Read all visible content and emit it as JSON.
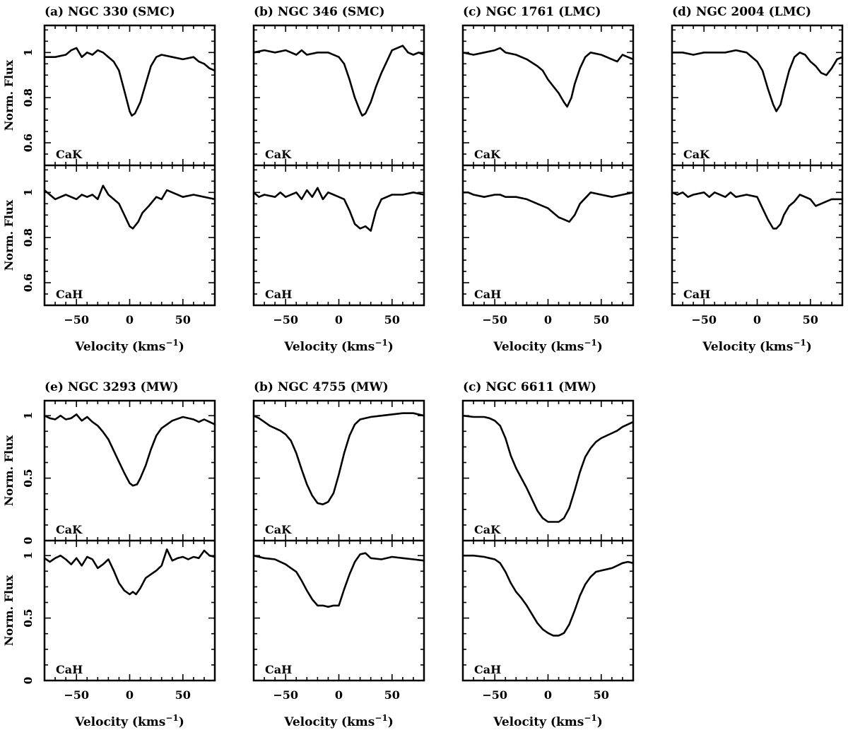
{
  "figure": {
    "xlabel": "Velocity (kms",
    "xlabel_sup": "−1",
    "xlabel_close": ")",
    "ylabel": "Norm. Flux"
  },
  "chart_data": [
    {
      "type": "line",
      "title": "(a) NGC 330 (SMC)",
      "xlim": [
        -80,
        80
      ],
      "ylim": [
        0.5,
        1.12
      ],
      "yticks": [
        0.6,
        0.8,
        1
      ],
      "ytick_labels": [
        "0.6",
        "0.8",
        "1"
      ],
      "xticks": [
        -50,
        0,
        50
      ],
      "xtick_labels": [
        "−50",
        "0",
        "50"
      ],
      "panels": [
        {
          "label": "CaK",
          "x": [
            -80,
            -70,
            -60,
            -55,
            -50,
            -45,
            -40,
            -35,
            -30,
            -25,
            -20,
            -15,
            -10,
            -5,
            0,
            2,
            5,
            10,
            15,
            20,
            25,
            30,
            40,
            50,
            60,
            65,
            70,
            75,
            80
          ],
          "y": [
            0.98,
            0.98,
            0.99,
            1.01,
            1.02,
            0.98,
            1.0,
            0.99,
            1.01,
            1.0,
            0.98,
            0.96,
            0.92,
            0.83,
            0.74,
            0.72,
            0.73,
            0.78,
            0.86,
            0.94,
            0.98,
            0.99,
            0.98,
            0.97,
            0.98,
            0.96,
            0.95,
            0.93,
            0.92
          ]
        },
        {
          "label": "CaH",
          "x": [
            -80,
            -75,
            -70,
            -60,
            -50,
            -45,
            -40,
            -35,
            -30,
            -25,
            -20,
            -15,
            -10,
            -5,
            0,
            3,
            8,
            12,
            18,
            25,
            30,
            35,
            40,
            50,
            60,
            70,
            80
          ],
          "y": [
            1.01,
            0.99,
            0.97,
            0.99,
            0.97,
            0.99,
            0.98,
            0.99,
            0.97,
            1.03,
            0.99,
            0.97,
            0.95,
            0.9,
            0.85,
            0.84,
            0.87,
            0.91,
            0.94,
            0.98,
            0.97,
            1.01,
            1.0,
            0.98,
            0.99,
            0.98,
            0.97
          ]
        }
      ]
    },
    {
      "type": "line",
      "title": "(b) NGC 346 (SMC)",
      "xlim": [
        -80,
        80
      ],
      "ylim": [
        0.5,
        1.12
      ],
      "yticks": [
        0.6,
        0.8,
        1
      ],
      "ytick_labels": [
        "0.6",
        "0.8",
        "1"
      ],
      "xticks": [
        -50,
        0,
        50
      ],
      "xtick_labels": [
        "−50",
        "0",
        "50"
      ],
      "panels": [
        {
          "label": "CaK",
          "x": [
            -80,
            -70,
            -60,
            -50,
            -40,
            -35,
            -30,
            -20,
            -10,
            0,
            5,
            10,
            15,
            20,
            22,
            25,
            30,
            35,
            40,
            45,
            50,
            55,
            60,
            65,
            70,
            75,
            80
          ],
          "y": [
            1.0,
            1.01,
            1.0,
            1.01,
            0.99,
            1.01,
            0.99,
            1.0,
            1.0,
            0.98,
            0.95,
            0.88,
            0.8,
            0.74,
            0.72,
            0.73,
            0.78,
            0.85,
            0.91,
            0.96,
            1.01,
            1.02,
            1.03,
            1.0,
            0.99,
            1.0,
            0.99
          ]
        },
        {
          "label": "CaH",
          "x": [
            -80,
            -75,
            -70,
            -60,
            -55,
            -50,
            -40,
            -35,
            -30,
            -25,
            -20,
            -15,
            -10,
            -5,
            0,
            5,
            10,
            15,
            20,
            25,
            30,
            35,
            40,
            50,
            60,
            70,
            80
          ],
          "y": [
            1.0,
            0.98,
            0.99,
            0.98,
            1.0,
            0.98,
            1.0,
            0.97,
            1.01,
            0.98,
            1.02,
            0.97,
            1.0,
            0.99,
            0.98,
            0.97,
            0.92,
            0.86,
            0.84,
            0.85,
            0.83,
            0.92,
            0.97,
            0.99,
            0.99,
            1.0,
            0.99
          ]
        }
      ]
    },
    {
      "type": "line",
      "title": "(c) NGC 1761 (LMC)",
      "xlim": [
        -80,
        80
      ],
      "ylim": [
        0.5,
        1.12
      ],
      "yticks": [
        0.6,
        0.8,
        1
      ],
      "ytick_labels": [
        "0.6",
        "0.8",
        "1"
      ],
      "xticks": [
        -50,
        0,
        50
      ],
      "xtick_labels": [
        "−50",
        "0",
        "50"
      ],
      "panels": [
        {
          "label": "CaK",
          "x": [
            -80,
            -70,
            -60,
            -50,
            -45,
            -40,
            -30,
            -20,
            -10,
            -5,
            0,
            5,
            10,
            15,
            18,
            22,
            25,
            30,
            35,
            40,
            50,
            55,
            60,
            65,
            70,
            80
          ],
          "y": [
            1.0,
            0.99,
            1.0,
            1.01,
            1.02,
            1.0,
            0.99,
            0.97,
            0.94,
            0.92,
            0.88,
            0.85,
            0.82,
            0.78,
            0.76,
            0.8,
            0.86,
            0.93,
            0.98,
            1.0,
            0.99,
            0.98,
            0.97,
            0.96,
            0.99,
            0.97
          ]
        },
        {
          "label": "CaH",
          "x": [
            -80,
            -75,
            -70,
            -60,
            -50,
            -45,
            -40,
            -30,
            -20,
            -10,
            0,
            5,
            10,
            15,
            20,
            25,
            30,
            40,
            50,
            60,
            70,
            80
          ],
          "y": [
            1.0,
            1.0,
            0.99,
            0.98,
            0.99,
            0.99,
            0.98,
            0.98,
            0.97,
            0.95,
            0.93,
            0.91,
            0.89,
            0.88,
            0.87,
            0.9,
            0.95,
            1.0,
            0.99,
            0.98,
            0.99,
            1.0
          ]
        }
      ]
    },
    {
      "type": "line",
      "title": "(d) NGC 2004 (LMC)",
      "xlim": [
        -80,
        80
      ],
      "ylim": [
        0.5,
        1.12
      ],
      "yticks": [
        0.6,
        0.8,
        1
      ],
      "ytick_labels": [
        "0.6",
        "0.8",
        "1"
      ],
      "xticks": [
        -50,
        0,
        50
      ],
      "xtick_labels": [
        "−50",
        "0",
        "50"
      ],
      "panels": [
        {
          "label": "CaK",
          "x": [
            -80,
            -70,
            -60,
            -50,
            -40,
            -30,
            -20,
            -10,
            -5,
            0,
            5,
            10,
            15,
            18,
            22,
            25,
            30,
            35,
            40,
            45,
            50,
            55,
            60,
            65,
            70,
            75,
            80
          ],
          "y": [
            1.0,
            1.0,
            0.99,
            1.0,
            1.0,
            1.0,
            1.01,
            1.0,
            0.98,
            0.96,
            0.92,
            0.84,
            0.77,
            0.74,
            0.77,
            0.83,
            0.92,
            0.98,
            1.0,
            0.99,
            0.96,
            0.94,
            0.91,
            0.9,
            0.93,
            0.97,
            0.98
          ]
        },
        {
          "label": "CaH",
          "x": [
            -80,
            -75,
            -70,
            -65,
            -60,
            -50,
            -45,
            -40,
            -30,
            -25,
            -20,
            -10,
            0,
            5,
            10,
            15,
            18,
            22,
            25,
            30,
            35,
            40,
            45,
            50,
            55,
            60,
            65,
            70,
            80
          ],
          "y": [
            1.0,
            0.99,
            1.0,
            0.98,
            0.99,
            1.0,
            0.98,
            1.0,
            0.98,
            1.0,
            0.98,
            0.99,
            0.98,
            0.93,
            0.88,
            0.84,
            0.84,
            0.86,
            0.9,
            0.94,
            0.96,
            0.99,
            0.98,
            0.97,
            0.94,
            0.95,
            0.96,
            0.97,
            0.97
          ]
        }
      ]
    },
    {
      "type": "line",
      "title": "(e) NGC 3293 (MW)",
      "xlim": [
        -80,
        80
      ],
      "ylim": [
        0,
        1.12
      ],
      "yticks": [
        0,
        0.5,
        1
      ],
      "ytick_labels": [
        "0",
        "0.5",
        "1"
      ],
      "xticks": [
        -50,
        0,
        50
      ],
      "xtick_labels": [
        "−50",
        "0",
        "50"
      ],
      "panels": [
        {
          "label": "CaK",
          "x": [
            -80,
            -75,
            -70,
            -65,
            -60,
            -55,
            -50,
            -45,
            -40,
            -35,
            -30,
            -25,
            -20,
            -15,
            -10,
            -5,
            0,
            3,
            7,
            10,
            15,
            20,
            25,
            30,
            40,
            50,
            60,
            65,
            70,
            75,
            80
          ],
          "y": [
            1.0,
            0.98,
            0.97,
            1.0,
            0.97,
            0.98,
            1.01,
            0.96,
            0.99,
            0.95,
            0.92,
            0.87,
            0.81,
            0.72,
            0.63,
            0.54,
            0.46,
            0.44,
            0.45,
            0.5,
            0.6,
            0.73,
            0.84,
            0.9,
            0.96,
            0.99,
            0.97,
            0.95,
            0.97,
            0.95,
            0.93
          ]
        },
        {
          "label": "CaH",
          "x": [
            -80,
            -75,
            -70,
            -65,
            -60,
            -55,
            -50,
            -45,
            -40,
            -35,
            -30,
            -25,
            -20,
            -15,
            -10,
            -5,
            0,
            3,
            6,
            10,
            15,
            20,
            25,
            30,
            35,
            40,
            45,
            50,
            55,
            60,
            65,
            70,
            75,
            80
          ],
          "y": [
            0.98,
            0.95,
            0.98,
            1.0,
            0.97,
            0.93,
            0.98,
            0.92,
            0.99,
            0.97,
            0.9,
            0.93,
            0.97,
            0.88,
            0.78,
            0.72,
            0.69,
            0.71,
            0.69,
            0.74,
            0.82,
            0.85,
            0.88,
            0.92,
            1.05,
            0.96,
            0.98,
            0.99,
            0.97,
            0.99,
            0.98,
            1.04,
            1.0,
            0.99
          ]
        }
      ]
    },
    {
      "type": "line",
      "title": "(b) NGC 4755 (MW)",
      "xlim": [
        -80,
        80
      ],
      "ylim": [
        0,
        1.12
      ],
      "yticks": [
        0,
        0.5,
        1
      ],
      "ytick_labels": [
        "0",
        "0.5",
        "1"
      ],
      "xticks": [
        -50,
        0,
        50
      ],
      "xtick_labels": [
        "−50",
        "0",
        "50"
      ],
      "panels": [
        {
          "label": "CaK",
          "x": [
            -80,
            -75,
            -70,
            -65,
            -60,
            -55,
            -50,
            -45,
            -40,
            -35,
            -30,
            -25,
            -20,
            -15,
            -10,
            -5,
            0,
            5,
            10,
            15,
            20,
            30,
            40,
            50,
            60,
            70,
            80
          ],
          "y": [
            1.0,
            0.98,
            0.95,
            0.92,
            0.9,
            0.88,
            0.85,
            0.8,
            0.7,
            0.57,
            0.45,
            0.36,
            0.3,
            0.29,
            0.31,
            0.38,
            0.53,
            0.7,
            0.84,
            0.93,
            0.97,
            0.99,
            1.0,
            1.01,
            1.02,
            1.02,
            1.0
          ]
        },
        {
          "label": "CaH",
          "x": [
            -80,
            -70,
            -60,
            -55,
            -50,
            -45,
            -40,
            -35,
            -30,
            -25,
            -20,
            -15,
            -10,
            -5,
            0,
            5,
            10,
            15,
            20,
            25,
            30,
            40,
            50,
            60,
            70,
            80
          ],
          "y": [
            1.0,
            0.98,
            0.97,
            0.95,
            0.93,
            0.9,
            0.87,
            0.8,
            0.72,
            0.65,
            0.6,
            0.6,
            0.59,
            0.6,
            0.6,
            0.73,
            0.85,
            0.95,
            1.01,
            1.02,
            0.98,
            0.97,
            0.99,
            0.98,
            0.97,
            0.96
          ]
        }
      ]
    },
    {
      "type": "line",
      "title": "(c) NGC 6611 (MW)",
      "xlim": [
        -80,
        80
      ],
      "ylim": [
        0,
        1.12
      ],
      "yticks": [
        0,
        0.5,
        1
      ],
      "ytick_labels": [
        "0",
        "0.5",
        "1"
      ],
      "xticks": [
        -50,
        0,
        50
      ],
      "xtick_labels": [
        "−50",
        "0",
        "50"
      ],
      "panels": [
        {
          "label": "CaK",
          "x": [
            -80,
            -70,
            -60,
            -55,
            -50,
            -45,
            -40,
            -35,
            -30,
            -25,
            -20,
            -15,
            -10,
            -5,
            0,
            5,
            10,
            15,
            20,
            25,
            30,
            35,
            40,
            45,
            50,
            55,
            60,
            65,
            70,
            75,
            80
          ],
          "y": [
            1.0,
            0.99,
            0.99,
            0.98,
            0.96,
            0.92,
            0.82,
            0.68,
            0.58,
            0.5,
            0.42,
            0.33,
            0.24,
            0.18,
            0.15,
            0.15,
            0.15,
            0.18,
            0.26,
            0.4,
            0.55,
            0.67,
            0.74,
            0.79,
            0.82,
            0.84,
            0.86,
            0.88,
            0.91,
            0.93,
            0.95
          ]
        },
        {
          "label": "CaH",
          "x": [
            -80,
            -70,
            -60,
            -55,
            -50,
            -45,
            -40,
            -35,
            -30,
            -25,
            -20,
            -15,
            -10,
            -5,
            0,
            5,
            10,
            15,
            20,
            25,
            30,
            35,
            40,
            45,
            50,
            55,
            60,
            65,
            70,
            75,
            80
          ],
          "y": [
            1.0,
            1.0,
            0.99,
            0.98,
            0.97,
            0.94,
            0.87,
            0.78,
            0.71,
            0.66,
            0.6,
            0.53,
            0.46,
            0.41,
            0.38,
            0.36,
            0.36,
            0.38,
            0.45,
            0.56,
            0.68,
            0.77,
            0.83,
            0.87,
            0.88,
            0.89,
            0.9,
            0.92,
            0.94,
            0.95,
            0.94
          ]
        }
      ]
    }
  ]
}
